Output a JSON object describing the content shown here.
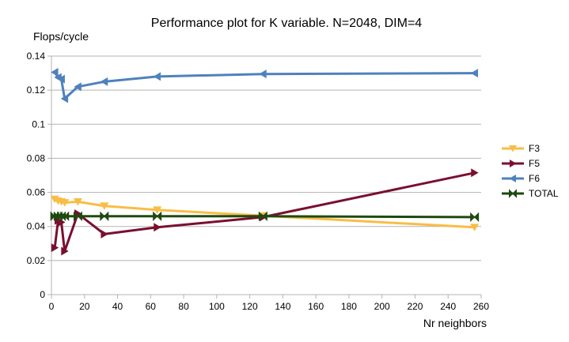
{
  "chart_data": {
    "type": "line",
    "title": "Performance plot for K variable. N=2048, DIM=4",
    "xlabel": "Nr neighbors",
    "ylabel": "Flops/cycle",
    "xlim": [
      0,
      260
    ],
    "ylim": [
      0,
      0.14
    ],
    "xticks": [
      0,
      20,
      40,
      60,
      80,
      100,
      120,
      140,
      160,
      180,
      200,
      220,
      240,
      260
    ],
    "xtick_labels": [
      "0",
      "20",
      "40",
      "60",
      "80",
      "100",
      "120",
      "140",
      "160",
      "180",
      "200",
      "220",
      "240",
      "260"
    ],
    "yticks": [
      0,
      0.02,
      0.04,
      0.06,
      0.08,
      0.1,
      0.12,
      0.14
    ],
    "ytick_labels": [
      "0",
      "0.02",
      "0.04",
      "0.06",
      "0.08",
      "0.1",
      "0.12",
      "0.14"
    ],
    "grid": "horizontal",
    "legend_position": "right",
    "x": [
      2,
      4,
      6,
      8,
      16,
      32,
      64,
      128,
      256
    ],
    "series": [
      {
        "name": "F3",
        "color": "#f9bd45",
        "marker": "triangle-down",
        "values": [
          0.056,
          0.055,
          0.0545,
          0.054,
          0.0545,
          0.052,
          0.0497,
          0.0463,
          0.0395
        ]
      },
      {
        "name": "F5",
        "color": "#7a0f2f",
        "marker": "triangle-right",
        "values": [
          0.0275,
          0.0435,
          0.0425,
          0.0255,
          0.0475,
          0.0355,
          0.0395,
          0.0455,
          0.0715
        ]
      },
      {
        "name": "F6",
        "color": "#4f81bd",
        "marker": "triangle-left",
        "values": [
          0.1305,
          0.1275,
          0.1265,
          0.115,
          0.122,
          0.125,
          0.128,
          0.1295,
          0.13
        ]
      },
      {
        "name": "TOTAL",
        "color": "#1e4a10",
        "marker": "bowtie",
        "values": [
          0.046,
          0.046,
          0.046,
          0.046,
          0.046,
          0.046,
          0.046,
          0.046,
          0.0455
        ]
      }
    ]
  }
}
